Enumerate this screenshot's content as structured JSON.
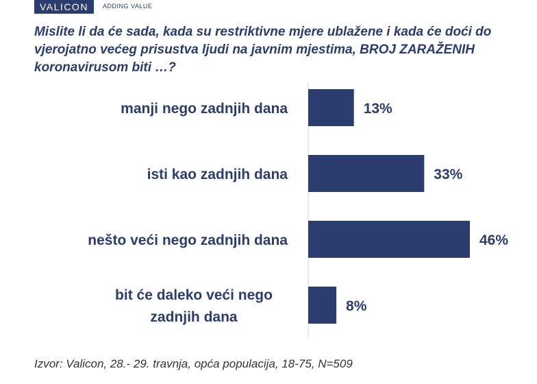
{
  "header": {
    "logo": "VALICON",
    "tagline": "ADDING VALUE"
  },
  "question": "Mislite li da će sada, kada su restriktivne mjere ublažene i kada će doći do vjerojatno većeg prisustva ljudi na javnim mjestima, BROJ ZARAŽENIH koronavirusom biti …?",
  "source": "Izvor: Valicon, 28.- 29. travnja, opća populacija, 18-75, N=509",
  "colors": {
    "bar": "#2b3c6e",
    "text": "#2b3c6e"
  },
  "chart_data": {
    "type": "bar",
    "orientation": "horizontal",
    "title": "Mislite li da će sada, kada su restriktivne mjere ublažene i kada će doći do vjerojatno većeg prisustva ljudi na javnim mjestima, BROJ ZARAŽENIH koronavirusom biti …?",
    "categories": [
      [
        "manji nego zadnjih dana"
      ],
      [
        "isti kao zadnjih dana"
      ],
      [
        "nešto veći nego zadnjih dana"
      ],
      [
        "bit će daleko veći nego",
        "zadnjih dana"
      ]
    ],
    "values": [
      13,
      33,
      46,
      8
    ],
    "value_labels": [
      "13%",
      "33%",
      "46%",
      "8%"
    ],
    "unit": "%",
    "xlim": [
      0,
      50
    ],
    "grid": false,
    "legend": "none"
  }
}
